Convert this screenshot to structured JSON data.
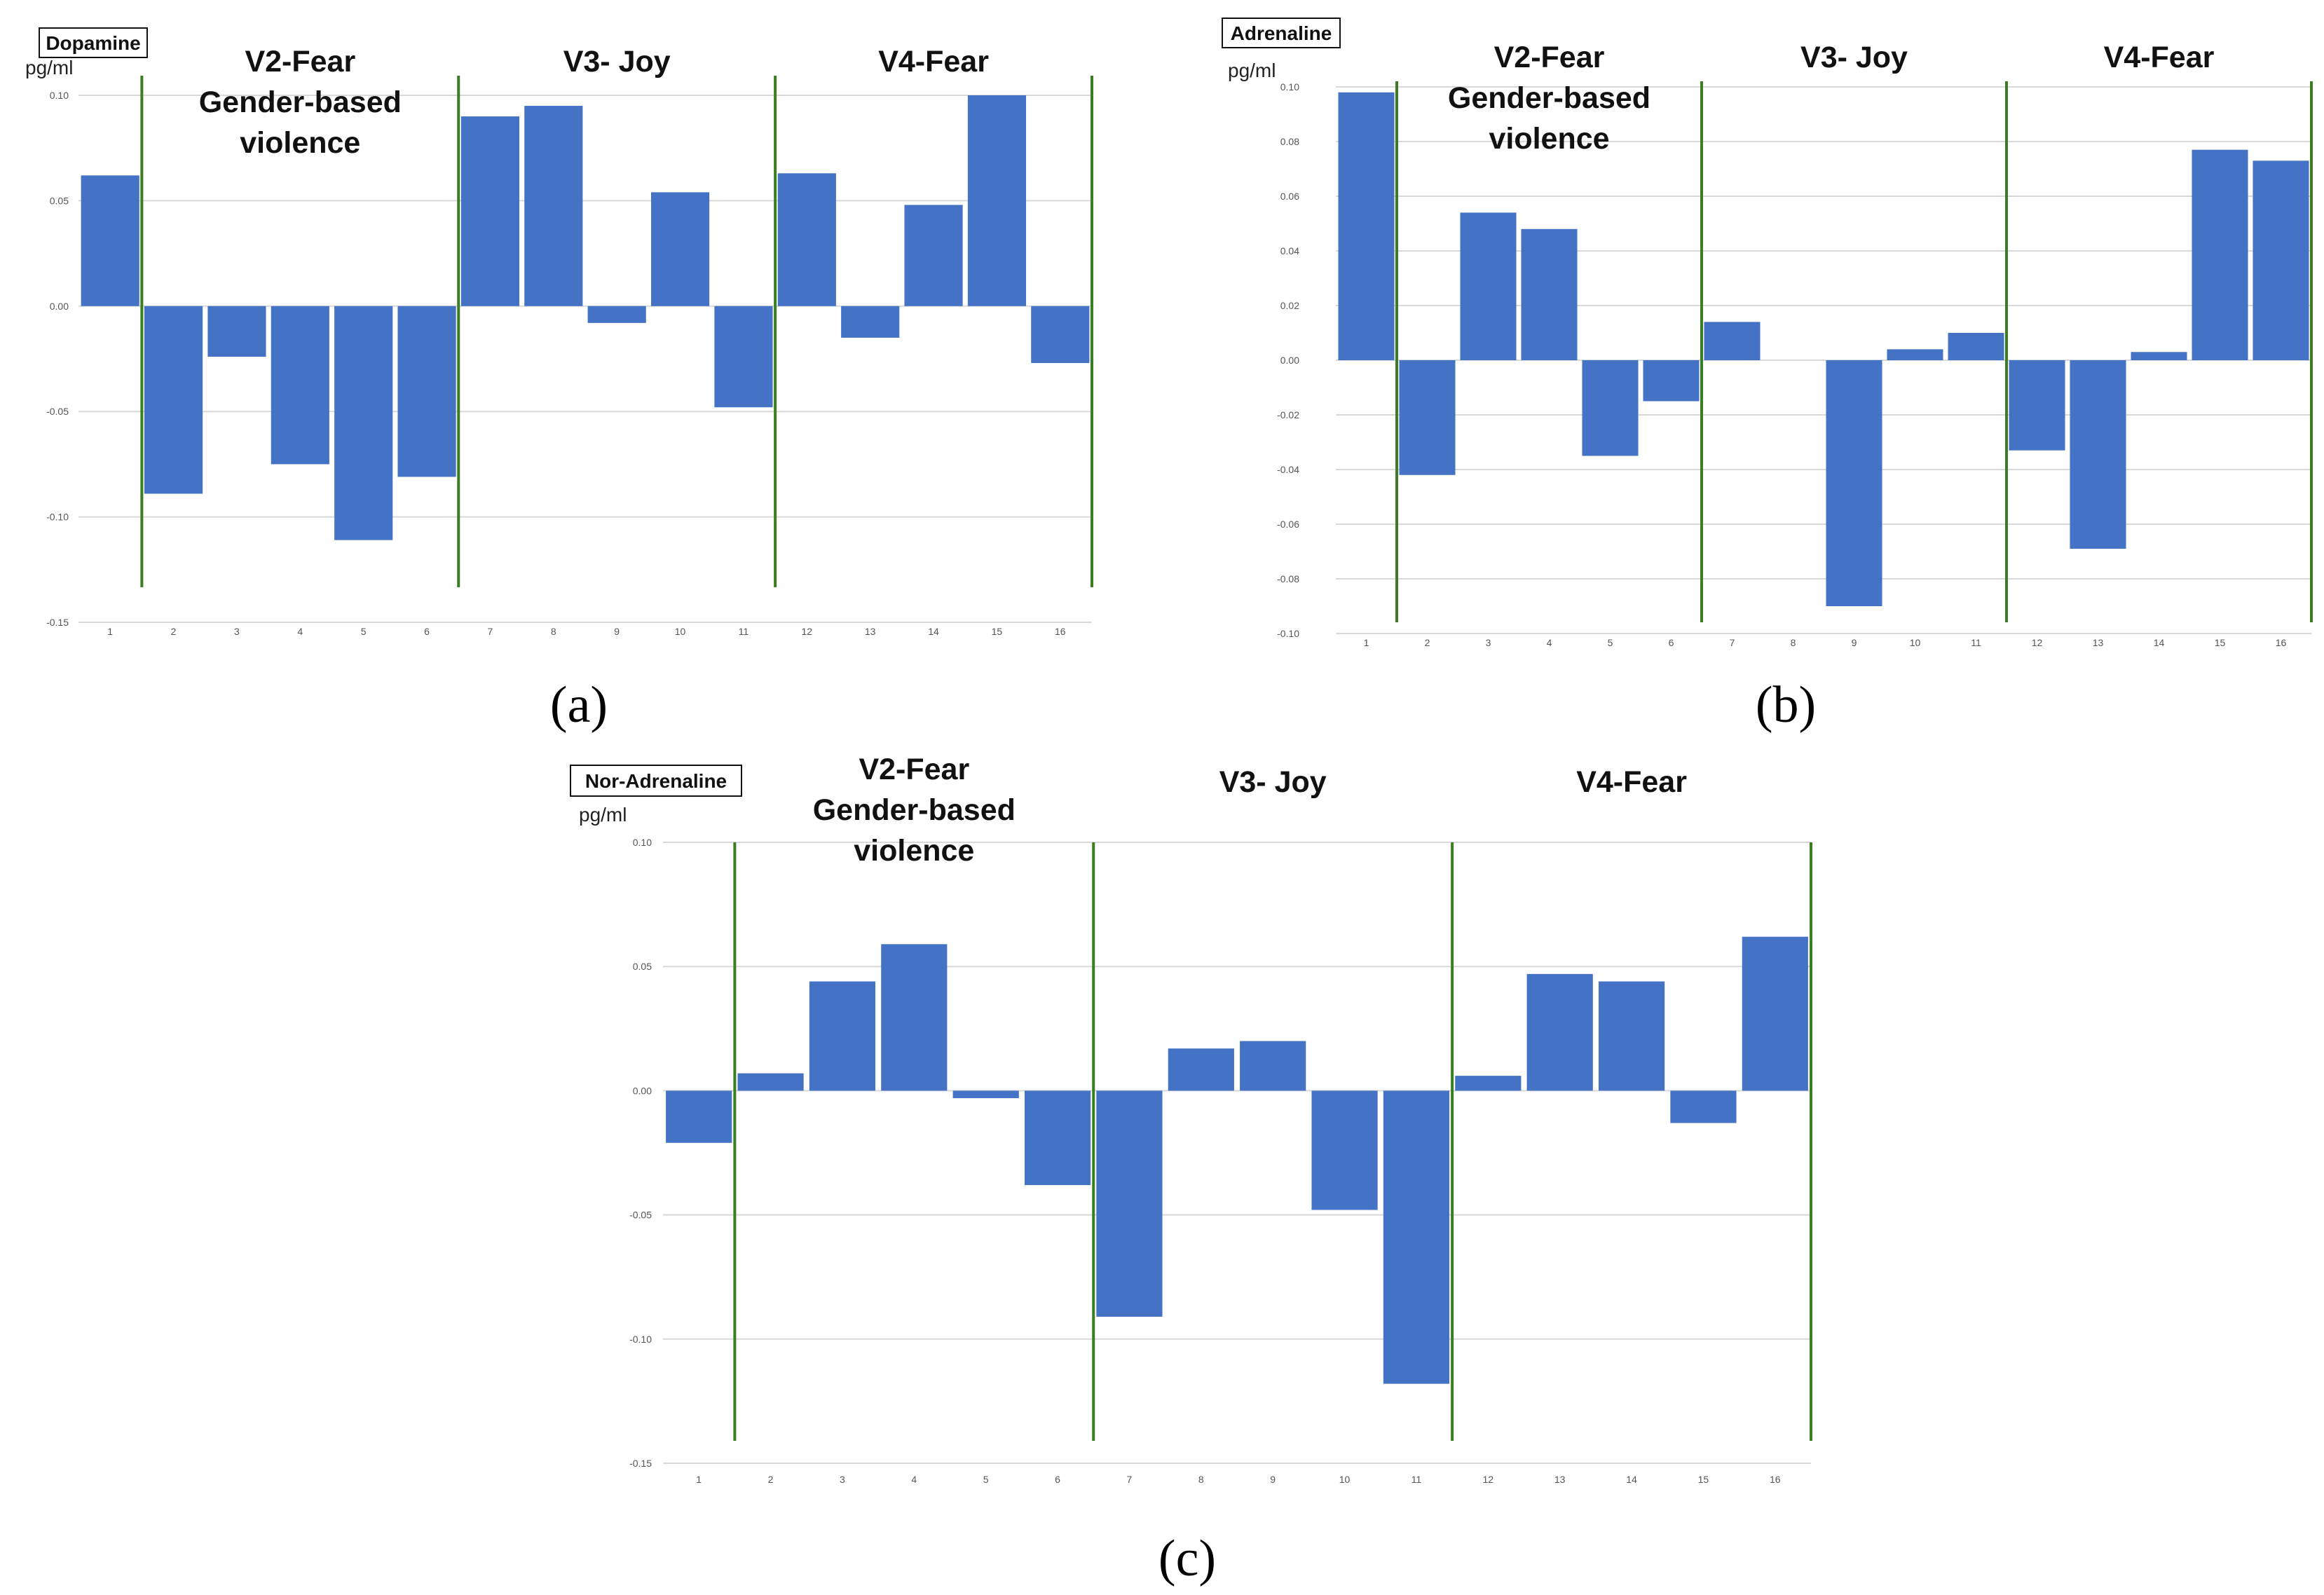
{
  "colors": {
    "bar": "#4472c4",
    "separator": "#3b7d23",
    "grid": "#d9d9d9"
  },
  "chart_data": [
    {
      "type": "bar",
      "panel_label": "(a)",
      "title": "Dopamine",
      "ylabel": "pg/ml",
      "ylim": [
        -0.15,
        0.1
      ],
      "yticks": [
        0.1,
        0.05,
        0.0,
        -0.05,
        -0.1,
        -0.15
      ],
      "ytick_labels": [
        "0.10",
        "0.05",
        "0.00",
        "-0.05",
        "-0.10",
        "-0.15"
      ],
      "categories": [
        "1",
        "2",
        "3",
        "4",
        "5",
        "6",
        "7",
        "8",
        "9",
        "10",
        "11",
        "12",
        "13",
        "14",
        "15",
        "16"
      ],
      "values": [
        0.062,
        -0.089,
        -0.024,
        -0.075,
        -0.111,
        -0.081,
        0.09,
        0.095,
        -0.008,
        0.054,
        -0.048,
        0.063,
        -0.015,
        0.048,
        0.1,
        -0.027
      ],
      "separators_after": [
        1,
        6,
        11,
        16
      ],
      "segments": [
        {
          "lines": [
            "V2-Fear",
            "Gender-based",
            "violence"
          ],
          "from": 2,
          "to": 6
        },
        {
          "lines": [
            "V3- Joy"
          ],
          "from": 7,
          "to": 11
        },
        {
          "lines": [
            "V4-Fear"
          ],
          "from": 12,
          "to": 16
        }
      ]
    },
    {
      "type": "bar",
      "panel_label": "(b)",
      "title": "Adrenaline",
      "ylabel": "pg/ml",
      "ylim": [
        -0.1,
        0.1
      ],
      "yticks": [
        0.1,
        0.08,
        0.06,
        0.04,
        0.02,
        0.0,
        -0.02,
        -0.04,
        -0.06,
        -0.08,
        -0.1
      ],
      "ytick_labels": [
        "0.10",
        "0.08",
        "0.06",
        "0.04",
        "0.02",
        "0.00",
        "-0.02",
        "-0.04",
        "-0.06",
        "-0.08",
        "-0.10"
      ],
      "categories": [
        "1",
        "2",
        "3",
        "4",
        "5",
        "6",
        "7",
        "8",
        "9",
        "10",
        "11",
        "12",
        "13",
        "14",
        "15",
        "16"
      ],
      "values": [
        0.098,
        -0.042,
        0.054,
        0.048,
        -0.035,
        -0.015,
        0.014,
        0.0,
        -0.09,
        0.004,
        0.01,
        -0.033,
        -0.069,
        0.003,
        0.077,
        0.073
      ],
      "separators_after": [
        1,
        6,
        11,
        16
      ],
      "segments": [
        {
          "lines": [
            "V2-Fear",
            "Gender-based",
            "violence"
          ],
          "from": 2,
          "to": 6
        },
        {
          "lines": [
            "V3- Joy"
          ],
          "from": 7,
          "to": 11
        },
        {
          "lines": [
            "V4-Fear"
          ],
          "from": 12,
          "to": 16
        }
      ]
    },
    {
      "type": "bar",
      "panel_label": "(c)",
      "title": "Nor-Adrenaline",
      "ylabel": "pg/ml",
      "ylim": [
        -0.15,
        0.1
      ],
      "yticks": [
        0.1,
        0.05,
        0.0,
        -0.05,
        -0.1,
        -0.15
      ],
      "ytick_labels": [
        "0.10",
        "0.05",
        "0.00",
        "-0.05",
        "-0.10",
        "-0.15"
      ],
      "categories": [
        "1",
        "2",
        "3",
        "4",
        "5",
        "6",
        "7",
        "8",
        "9",
        "10",
        "11",
        "12",
        "13",
        "14",
        "15",
        "16"
      ],
      "values": [
        -0.021,
        0.007,
        0.044,
        0.059,
        -0.003,
        -0.038,
        -0.091,
        0.017,
        0.02,
        -0.048,
        -0.118,
        0.006,
        0.047,
        0.044,
        -0.013,
        0.062
      ],
      "separators_after": [
        1,
        6,
        11,
        16
      ],
      "segments": [
        {
          "lines": [
            "V2-Fear",
            "Gender-based",
            "violence"
          ],
          "from": 2,
          "to": 6
        },
        {
          "lines": [
            "V3- Joy"
          ],
          "from": 7,
          "to": 11
        },
        {
          "lines": [
            "V4-Fear"
          ],
          "from": 12,
          "to": 16
        }
      ]
    }
  ]
}
